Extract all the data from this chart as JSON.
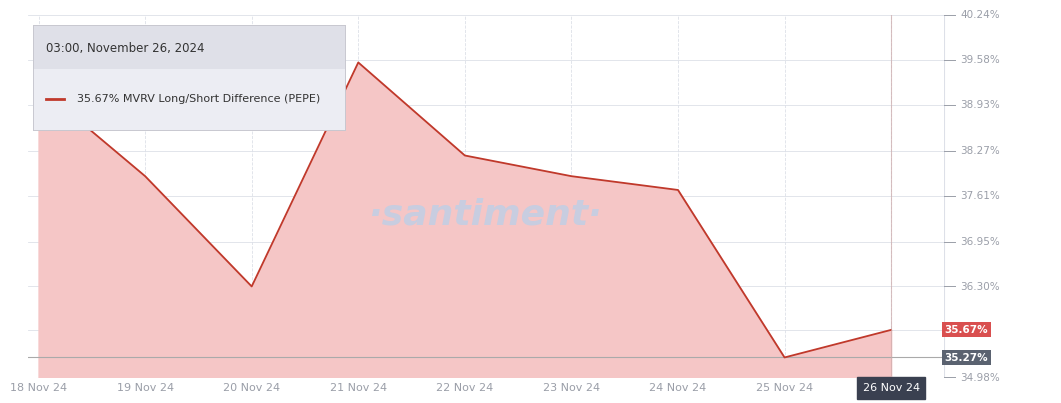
{
  "subtitle": "03:00, November 26, 2024",
  "legend_label": "35.67% MVRV Long/Short Difference (PEPE)",
  "watermark": "·santiment·",
  "x_labels": [
    "18 Nov 24",
    "19 Nov 24",
    "20 Nov 24",
    "21 Nov 24",
    "22 Nov 24",
    "23 Nov 24",
    "24 Nov 24",
    "25 Nov 24",
    "26 Nov 24"
  ],
  "x_values": [
    0,
    1,
    2,
    3,
    4,
    5,
    6,
    7,
    8
  ],
  "y_values": [
    39.2,
    37.9,
    36.3,
    39.55,
    38.2,
    37.9,
    37.7,
    35.27,
    35.67
  ],
  "y_min": 34.98,
  "y_max": 40.24,
  "y_ticks_right": [
    40.24,
    39.58,
    38.93,
    38.27,
    37.61,
    36.95,
    36.3,
    34.98
  ],
  "current_value": 35.67,
  "current_value_color": "#d94f4f",
  "prev_value": 35.27,
  "prev_value_color": "#5a6270",
  "line_color": "#c0392b",
  "fill_color": "#f5c6c6",
  "bg_color": "#ffffff",
  "grid_color": "#dde0e8",
  "axis_label_color": "#9a9ea8",
  "legend_box_bg": "#ecedf3",
  "legend_title_bg": "#dfe0e8",
  "watermark_color": "#c8cde0",
  "last_x_bg": "#3a4050"
}
